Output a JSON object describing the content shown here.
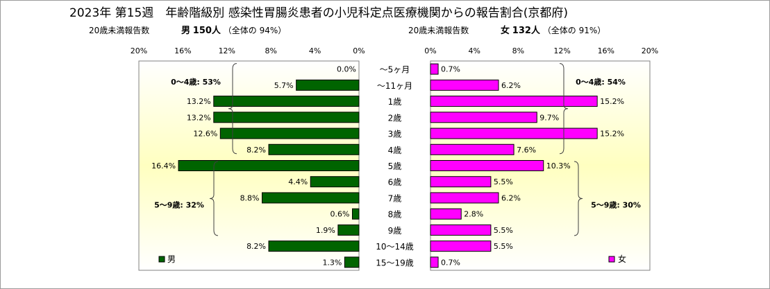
{
  "title": "2023年 第15週　年齢階級別 感染性胃腸炎患者の小児科定点医療機関からの報告割合(京都府)",
  "left_header": {
    "label": "20歳未満報告数",
    "sex": "男",
    "count": "150人",
    "share": "（全体の 94%）"
  },
  "right_header": {
    "label": "20歳未満報告数",
    "sex": "女",
    "count": "132人",
    "share": "（全体の 91%）"
  },
  "colors": {
    "male": "#006400",
    "female": "#ff00ff",
    "band_top": "#ffffff",
    "band_mid": "#ffffc0"
  },
  "chart_data": {
    "type": "bar",
    "orientation": "horizontal-butterfly",
    "categories": [
      "～5ヶ月",
      "～11ヶ月",
      "1歳",
      "2歳",
      "3歳",
      "4歳",
      "5歳",
      "6歳",
      "7歳",
      "8歳",
      "9歳",
      "10～14歳",
      "15～19歳"
    ],
    "axis_ticks": [
      "0%",
      "4%",
      "8%",
      "12%",
      "16%",
      "20%"
    ],
    "xlim": [
      0,
      20
    ],
    "series": [
      {
        "name": "男",
        "values": [
          0.0,
          5.7,
          13.2,
          13.2,
          12.6,
          8.2,
          16.4,
          4.4,
          8.8,
          0.6,
          1.9,
          8.2,
          1.3
        ],
        "labels": [
          "0.0%",
          "5.7%",
          "13.2%",
          "13.2%",
          "12.6%",
          "8.2%",
          "16.4%",
          "4.4%",
          "8.8%",
          "0.6%",
          "1.9%",
          "8.2%",
          "1.3%"
        ]
      },
      {
        "name": "女",
        "values": [
          0.7,
          6.2,
          15.2,
          9.7,
          15.2,
          7.6,
          10.3,
          5.5,
          6.2,
          2.8,
          5.5,
          5.5,
          0.7
        ],
        "labels": [
          "0.7%",
          "6.2%",
          "15.2%",
          "9.7%",
          "15.2%",
          "7.6%",
          "10.3%",
          "5.5%",
          "6.2%",
          "2.8%",
          "5.5%",
          "5.5%",
          "0.7%"
        ]
      }
    ],
    "annotations": {
      "male_0_4": "0～4歳: 53%",
      "male_5_9": "5～9歳: 32%",
      "female_0_4": "0～4歳: 54%",
      "female_5_9": "5～9歳: 30%"
    },
    "legend": {
      "male": "男",
      "female": "女"
    }
  }
}
